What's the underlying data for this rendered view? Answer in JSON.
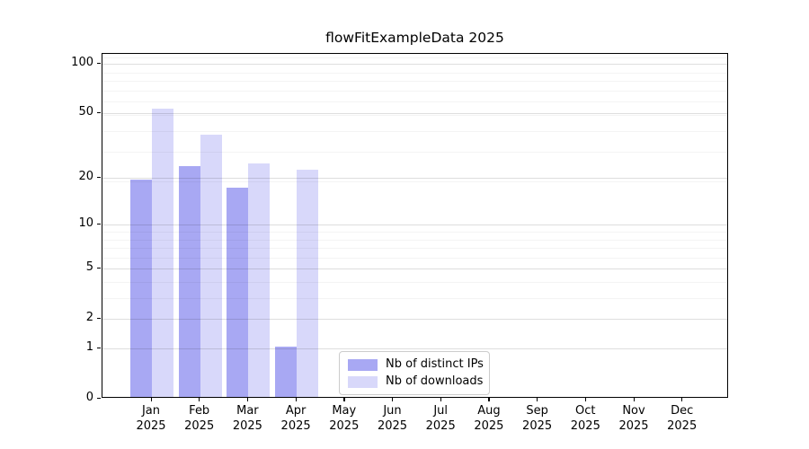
{
  "figure": {
    "background": "#ffffff"
  },
  "chart_data": {
    "type": "bar",
    "title": "flowFitExampleData 2025",
    "categories": [
      "Jan",
      "Feb",
      "Mar",
      "Apr",
      "May",
      "Jun",
      "Jul",
      "Aug",
      "Sep",
      "Oct",
      "Nov",
      "Dec"
    ],
    "category_year": "2025",
    "series": [
      {
        "name": "Nb of distinct IPs",
        "color": "#a8a8f3",
        "values": [
          19,
          23,
          17,
          1,
          0,
          0,
          0,
          0,
          0,
          0,
          0,
          0
        ]
      },
      {
        "name": "Nb of downloads",
        "color": "#d8d8fa",
        "values": [
          52,
          36,
          24,
          22,
          0,
          0,
          0,
          0,
          0,
          0,
          0,
          0
        ]
      }
    ],
    "xlabel": "",
    "ylabel": "",
    "yscale": "log10(1+y)",
    "ylim": [
      0,
      115
    ],
    "yticks": [
      0,
      1,
      2,
      5,
      10,
      20,
      50,
      100
    ],
    "yticks_minor": [
      3,
      4,
      6,
      7,
      8,
      9,
      19,
      29,
      39,
      49,
      59,
      69,
      79,
      89,
      109
    ],
    "grid": "horizontal, drawn over bars",
    "legend_position": "lower center"
  }
}
